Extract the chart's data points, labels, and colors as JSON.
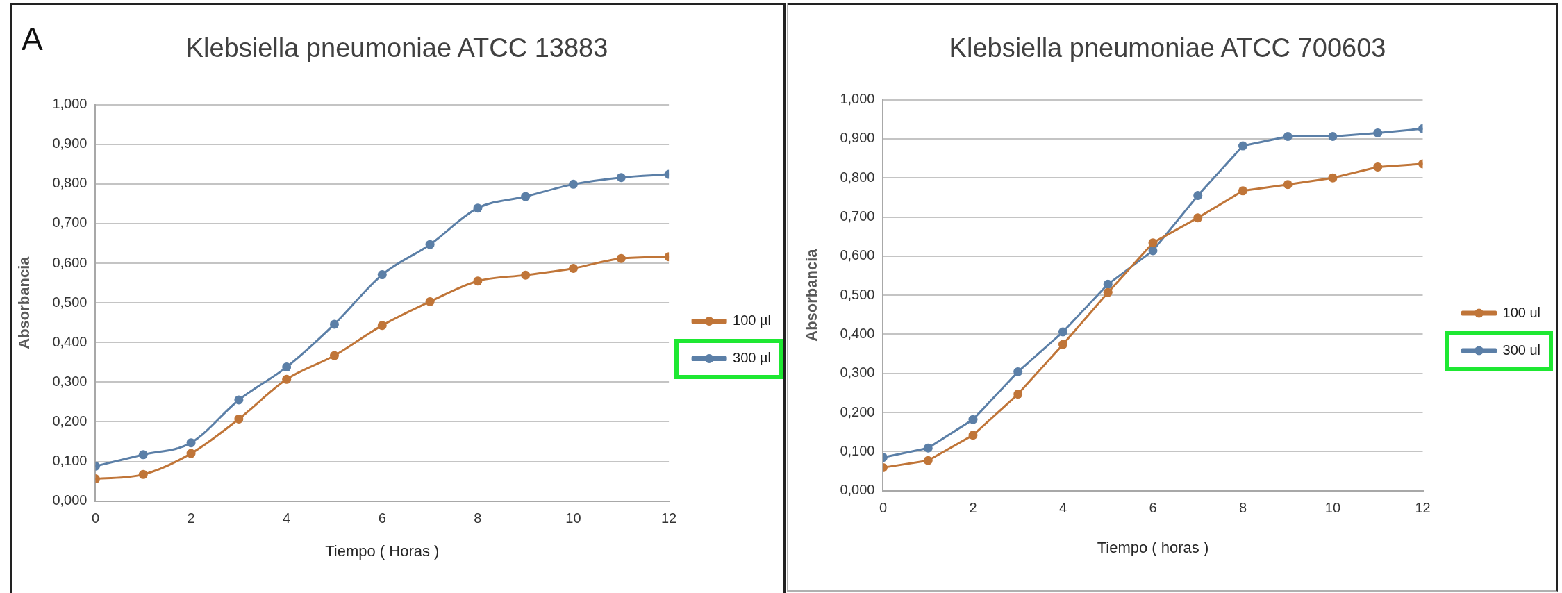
{
  "chart_data": [
    {
      "type": "line",
      "title": "Klebsiella pneumoniae ATCC 13883",
      "xlabel": "Tiempo ( Horas )",
      "ylabel": "Absorbancia",
      "annotations": [
        "A"
      ],
      "x": [
        0,
        1,
        2,
        3,
        4,
        5,
        6,
        7,
        8,
        9,
        10,
        11,
        12
      ],
      "series": [
        {
          "name": "100 µl",
          "color": "#c07538",
          "values": [
            0.056,
            0.067,
            0.12,
            0.207,
            0.307,
            0.367,
            0.443,
            0.503,
            0.555,
            0.57,
            0.587,
            0.612,
            0.616
          ]
        },
        {
          "name": "300 µl",
          "color": "#5b7fa7",
          "values": [
            0.088,
            0.117,
            0.147,
            0.255,
            0.338,
            0.446,
            0.571,
            0.647,
            0.739,
            0.768,
            0.799,
            0.816,
            0.824
          ]
        }
      ],
      "xlim": [
        0,
        12
      ],
      "xticks": [
        0,
        2,
        4,
        6,
        8,
        10,
        12
      ],
      "ylim": [
        0,
        1
      ],
      "yticks": [
        {
          "value": 0,
          "label": "0,000"
        },
        {
          "value": 0.1,
          "label": "0,100"
        },
        {
          "value": 0.2,
          "label": "0,200"
        },
        {
          "value": 0.3,
          "label": "0,300"
        },
        {
          "value": 0.4,
          "label": "0,400"
        },
        {
          "value": 0.5,
          "label": "0,500"
        },
        {
          "value": 0.6,
          "label": "0,600"
        },
        {
          "value": 0.7,
          "label": "0,700"
        },
        {
          "value": 0.8,
          "label": "0,800"
        },
        {
          "value": 0.9,
          "label": "0,900"
        },
        {
          "value": 1,
          "label": "1,000"
        }
      ],
      "grid": "y",
      "legend": "right",
      "marker": "circle",
      "line_style": "solid"
    },
    {
      "type": "line",
      "title": "Klebsiella pneumoniae ATCC 700603",
      "xlabel": "Tiempo ( horas )",
      "ylabel": "Absorbancia",
      "x": [
        0,
        1,
        2,
        3,
        4,
        5,
        6,
        7,
        8,
        9,
        10,
        11,
        12
      ],
      "series": [
        {
          "name": "100 ul",
          "color": "#c07538",
          "values": [
            0.059,
            0.077,
            0.142,
            0.247,
            0.374,
            0.507,
            0.634,
            0.698,
            0.767,
            0.783,
            0.8,
            0.828,
            0.836
          ]
        },
        {
          "name": "300 ul",
          "color": "#5b7fa7",
          "values": [
            0.085,
            0.109,
            0.182,
            0.304,
            0.406,
            0.528,
            0.614,
            0.755,
            0.882,
            0.906,
            0.906,
            0.915,
            0.926
          ]
        }
      ],
      "xlim": [
        0,
        12
      ],
      "xticks": [
        0,
        2,
        4,
        6,
        8,
        10,
        12
      ],
      "ylim": [
        0,
        1
      ],
      "yticks": [
        {
          "value": 0,
          "label": "0,000"
        },
        {
          "value": 0.1,
          "label": "0,100"
        },
        {
          "value": 0.2,
          "label": "0,200"
        },
        {
          "value": 0.3,
          "label": "0,300"
        },
        {
          "value": 0.4,
          "label": "0,400"
        },
        {
          "value": 0.5,
          "label": "0,500"
        },
        {
          "value": 0.6,
          "label": "0,600"
        },
        {
          "value": 0.7,
          "label": "0,700"
        },
        {
          "value": 0.8,
          "label": "0,800"
        },
        {
          "value": 0.9,
          "label": "0,900"
        },
        {
          "value": 1,
          "label": "1,000"
        }
      ],
      "grid": "y",
      "legend": "right",
      "marker": "circle",
      "line_style": "solid"
    }
  ]
}
